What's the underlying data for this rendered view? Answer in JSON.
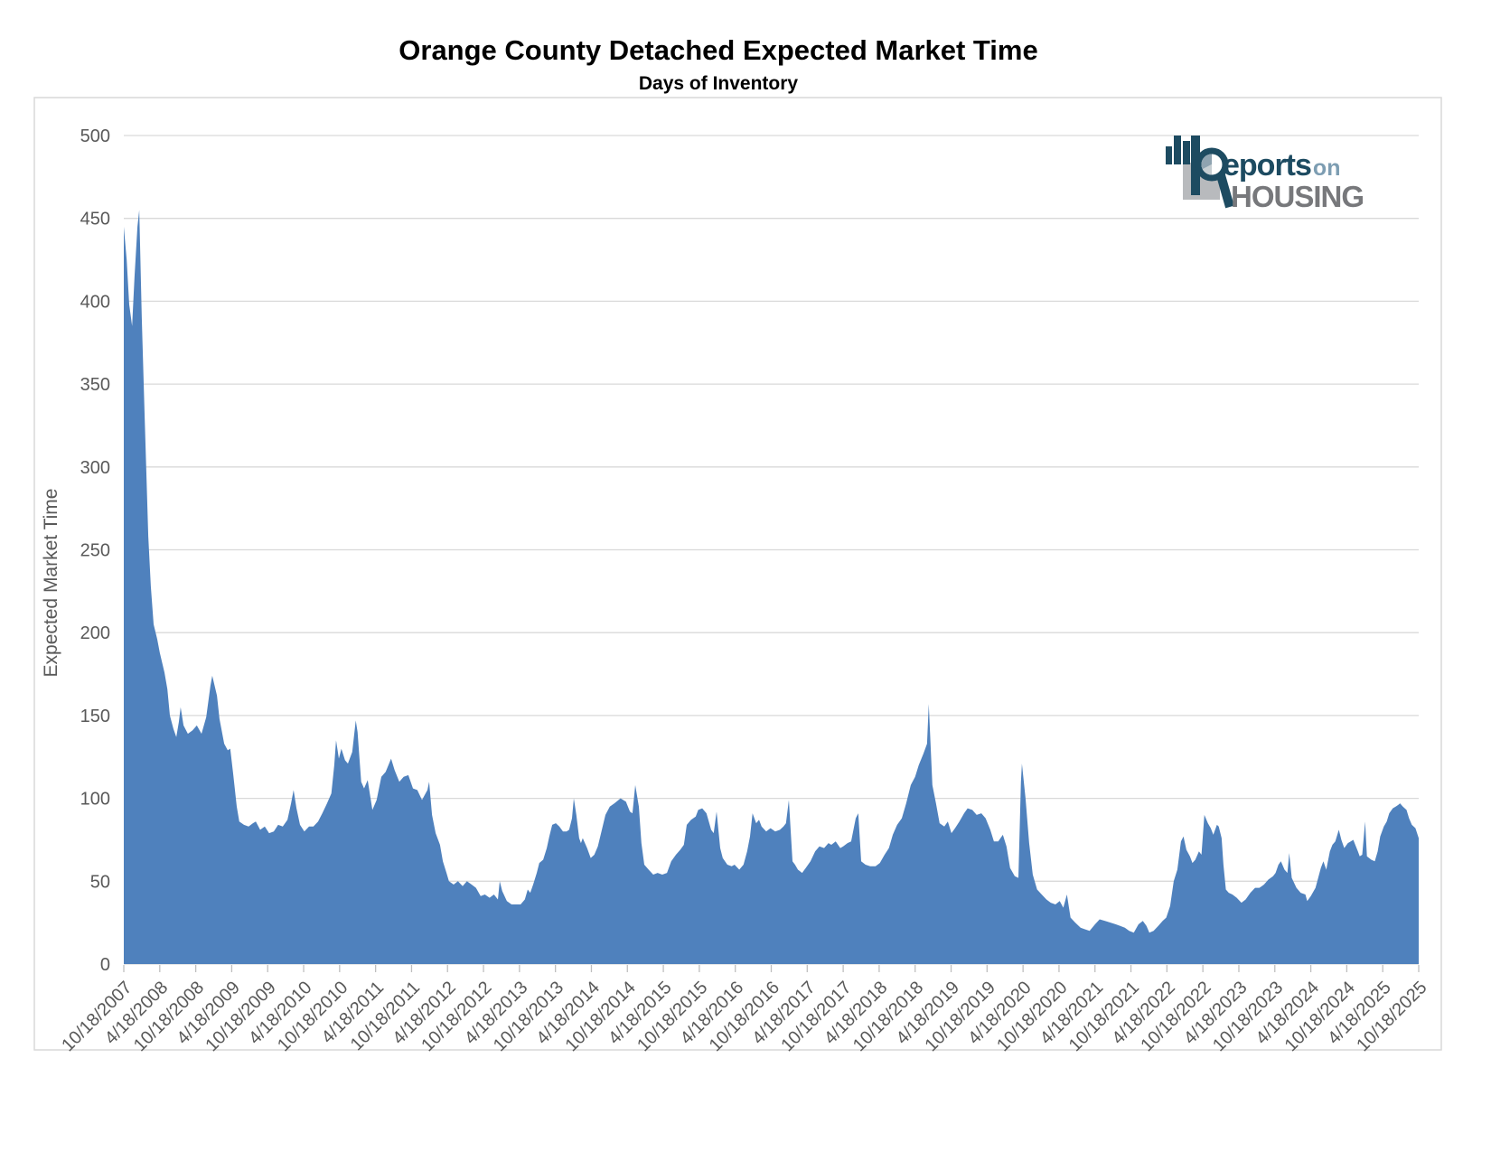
{
  "title": "Orange County Detached Expected Market Time",
  "subtitle": "Days of Inventory",
  "logo": {
    "reports": "eports",
    "on": "on",
    "housing": "HOUSING",
    "navy": "#1d4b61",
    "light_blue": "#7d9db2",
    "gray": "#77787b",
    "square_gray": "#b8babd"
  },
  "chart_data": {
    "type": "area",
    "title": "Orange County Detached Expected Market Time",
    "subtitle": "Days of Inventory",
    "legend": "none",
    "grid": "horizontal only, every 50",
    "y_axis": {
      "title": "Expected Market Time",
      "min": 0,
      "max": 500,
      "step": 50,
      "tick_labels": [
        "0",
        "50",
        "100",
        "150",
        "200",
        "250",
        "300",
        "350",
        "400",
        "450",
        "500"
      ]
    },
    "x_axis": {
      "note": "weekly series from 10/18/2007 to 10/18/2025; tick every 6 months; point x below is in tick-index units 0-36",
      "tick_labels": [
        "10/18/2007",
        "4/18/2008",
        "10/18/2008",
        "4/18/2009",
        "10/18/2009",
        "4/18/2010",
        "10/18/2010",
        "4/18/2011",
        "10/18/2011",
        "4/18/2012",
        "10/18/2012",
        "4/18/2013",
        "10/18/2013",
        "4/18/2014",
        "10/18/2014",
        "4/18/2015",
        "10/18/2015",
        "4/18/2016",
        "10/18/2016",
        "4/18/2017",
        "10/18/2017",
        "4/18/2018",
        "10/18/2018",
        "4/18/2019",
        "10/18/2019",
        "4/18/2020",
        "10/18/2020",
        "4/18/2021",
        "10/18/2021",
        "4/18/2022",
        "10/18/2022",
        "4/18/2023",
        "10/18/2023",
        "4/18/2024",
        "10/18/2024",
        "4/18/2025",
        "10/18/2025"
      ]
    },
    "style": {
      "area_fill": "#4f81bd",
      "gridline": "#d9d9d9",
      "frame": "#d9d9d9",
      "tick": "#bfbfbf",
      "axis_text": "#595959",
      "background": "#ffffff"
    },
    "points": [
      [
        0,
        445
      ],
      [
        0.08,
        425
      ],
      [
        0.15,
        398
      ],
      [
        0.23,
        385
      ],
      [
        0.3,
        415
      ],
      [
        0.38,
        445
      ],
      [
        0.43,
        455
      ],
      [
        0.5,
        390
      ],
      [
        0.58,
        330
      ],
      [
        0.68,
        258
      ],
      [
        0.75,
        228
      ],
      [
        0.83,
        205
      ],
      [
        0.93,
        196
      ],
      [
        1,
        188
      ],
      [
        1.13,
        176
      ],
      [
        1.21,
        166
      ],
      [
        1.28,
        150
      ],
      [
        1.38,
        142
      ],
      [
        1.46,
        137
      ],
      [
        1.53,
        146
      ],
      [
        1.58,
        155
      ],
      [
        1.66,
        144
      ],
      [
        1.78,
        139
      ],
      [
        1.91,
        141
      ],
      [
        2.03,
        144
      ],
      [
        2.16,
        139
      ],
      [
        2.29,
        149
      ],
      [
        2.41,
        168
      ],
      [
        2.46,
        174
      ],
      [
        2.59,
        162
      ],
      [
        2.66,
        148
      ],
      [
        2.79,
        133
      ],
      [
        2.89,
        129
      ],
      [
        2.96,
        130
      ],
      [
        3.04,
        115
      ],
      [
        3.14,
        95
      ],
      [
        3.21,
        86
      ],
      [
        3.34,
        84
      ],
      [
        3.47,
        83
      ],
      [
        3.59,
        85
      ],
      [
        3.67,
        86
      ],
      [
        3.79,
        81
      ],
      [
        3.92,
        83
      ],
      [
        4.04,
        79
      ],
      [
        4.17,
        80
      ],
      [
        4.29,
        84
      ],
      [
        4.42,
        83
      ],
      [
        4.55,
        87
      ],
      [
        4.65,
        97
      ],
      [
        4.72,
        105
      ],
      [
        4.8,
        94
      ],
      [
        4.9,
        84
      ],
      [
        5.02,
        80
      ],
      [
        5.15,
        83
      ],
      [
        5.27,
        83
      ],
      [
        5.4,
        86
      ],
      [
        5.52,
        91
      ],
      [
        5.65,
        97
      ],
      [
        5.77,
        103
      ],
      [
        5.85,
        120
      ],
      [
        5.9,
        135
      ],
      [
        5.98,
        124
      ],
      [
        6.05,
        130
      ],
      [
        6.15,
        123
      ],
      [
        6.23,
        121
      ],
      [
        6.35,
        128
      ],
      [
        6.45,
        147
      ],
      [
        6.5,
        140
      ],
      [
        6.6,
        110
      ],
      [
        6.68,
        106
      ],
      [
        6.78,
        111
      ],
      [
        6.91,
        93
      ],
      [
        7.03,
        99
      ],
      [
        7.16,
        113
      ],
      [
        7.28,
        116
      ],
      [
        7.43,
        124
      ],
      [
        7.53,
        117
      ],
      [
        7.66,
        110
      ],
      [
        7.78,
        113
      ],
      [
        7.91,
        114
      ],
      [
        8.04,
        106
      ],
      [
        8.16,
        105
      ],
      [
        8.29,
        99
      ],
      [
        8.44,
        105
      ],
      [
        8.49,
        110
      ],
      [
        8.57,
        90
      ],
      [
        8.67,
        79
      ],
      [
        8.79,
        72
      ],
      [
        8.87,
        62
      ],
      [
        8.97,
        55
      ],
      [
        9.04,
        50
      ],
      [
        9.17,
        48
      ],
      [
        9.29,
        50
      ],
      [
        9.42,
        47
      ],
      [
        9.54,
        50
      ],
      [
        9.67,
        48
      ],
      [
        9.79,
        46
      ],
      [
        9.92,
        41
      ],
      [
        10.04,
        42
      ],
      [
        10.17,
        40
      ],
      [
        10.29,
        42
      ],
      [
        10.4,
        39
      ],
      [
        10.45,
        50
      ],
      [
        10.52,
        44
      ],
      [
        10.65,
        38
      ],
      [
        10.78,
        36
      ],
      [
        10.9,
        36
      ],
      [
        11.03,
        36
      ],
      [
        11.15,
        39
      ],
      [
        11.23,
        45
      ],
      [
        11.3,
        43
      ],
      [
        11.38,
        48
      ],
      [
        11.48,
        55
      ],
      [
        11.55,
        61
      ],
      [
        11.66,
        63
      ],
      [
        11.76,
        70
      ],
      [
        11.83,
        77
      ],
      [
        11.91,
        84
      ],
      [
        12.01,
        85
      ],
      [
        12.11,
        83
      ],
      [
        12.21,
        80
      ],
      [
        12.31,
        80
      ],
      [
        12.38,
        81
      ],
      [
        12.46,
        88
      ],
      [
        12.51,
        100
      ],
      [
        12.58,
        90
      ],
      [
        12.66,
        76
      ],
      [
        12.71,
        73
      ],
      [
        12.76,
        76
      ],
      [
        12.88,
        70
      ],
      [
        12.98,
        64
      ],
      [
        13.08,
        66
      ],
      [
        13.18,
        71
      ],
      [
        13.28,
        80
      ],
      [
        13.39,
        90
      ],
      [
        13.51,
        95
      ],
      [
        13.64,
        97
      ],
      [
        13.81,
        100
      ],
      [
        13.96,
        98
      ],
      [
        14.07,
        92
      ],
      [
        14.14,
        91
      ],
      [
        14.22,
        108
      ],
      [
        14.32,
        95
      ],
      [
        14.39,
        73
      ],
      [
        14.47,
        60
      ],
      [
        14.59,
        57
      ],
      [
        14.72,
        54
      ],
      [
        14.84,
        55
      ],
      [
        14.97,
        54
      ],
      [
        15.1,
        55
      ],
      [
        15.22,
        62
      ],
      [
        15.35,
        66
      ],
      [
        15.47,
        69
      ],
      [
        15.57,
        72
      ],
      [
        15.65,
        84
      ],
      [
        15.77,
        87
      ],
      [
        15.9,
        89
      ],
      [
        15.97,
        93
      ],
      [
        16.08,
        94
      ],
      [
        16.2,
        91
      ],
      [
        16.33,
        81
      ],
      [
        16.4,
        79
      ],
      [
        16.48,
        92
      ],
      [
        16.58,
        70
      ],
      [
        16.65,
        64
      ],
      [
        16.78,
        60
      ],
      [
        16.9,
        59
      ],
      [
        16.98,
        60
      ],
      [
        17.11,
        57
      ],
      [
        17.23,
        60
      ],
      [
        17.33,
        68
      ],
      [
        17.41,
        77
      ],
      [
        17.48,
        91
      ],
      [
        17.58,
        85
      ],
      [
        17.66,
        87
      ],
      [
        17.73,
        83
      ],
      [
        17.86,
        80
      ],
      [
        17.98,
        82
      ],
      [
        18.11,
        80
      ],
      [
        18.24,
        81
      ],
      [
        18.34,
        83
      ],
      [
        18.41,
        85
      ],
      [
        18.49,
        99
      ],
      [
        18.59,
        62
      ],
      [
        18.66,
        60
      ],
      [
        18.74,
        57
      ],
      [
        18.86,
        55
      ],
      [
        18.96,
        58
      ],
      [
        19.09,
        62
      ],
      [
        19.22,
        68
      ],
      [
        19.34,
        71
      ],
      [
        19.47,
        70
      ],
      [
        19.59,
        73
      ],
      [
        19.67,
        72
      ],
      [
        19.79,
        74
      ],
      [
        19.92,
        70
      ],
      [
        20,
        71
      ],
      [
        20.12,
        73
      ],
      [
        20.22,
        74
      ],
      [
        20.35,
        88
      ],
      [
        20.42,
        91
      ],
      [
        20.5,
        62
      ],
      [
        20.62,
        60
      ],
      [
        20.75,
        59
      ],
      [
        20.9,
        59
      ],
      [
        21.02,
        61
      ],
      [
        21.15,
        66
      ],
      [
        21.27,
        70
      ],
      [
        21.38,
        78
      ],
      [
        21.5,
        84
      ],
      [
        21.63,
        88
      ],
      [
        21.75,
        97
      ],
      [
        21.88,
        108
      ],
      [
        22,
        113
      ],
      [
        22.1,
        120
      ],
      [
        22.23,
        127
      ],
      [
        22.33,
        133
      ],
      [
        22.38,
        157
      ],
      [
        22.48,
        108
      ],
      [
        22.58,
        97
      ],
      [
        22.68,
        85
      ],
      [
        22.81,
        83
      ],
      [
        22.91,
        86
      ],
      [
        23.01,
        79
      ],
      [
        23.11,
        82
      ],
      [
        23.23,
        86
      ],
      [
        23.36,
        91
      ],
      [
        23.46,
        94
      ],
      [
        23.59,
        93
      ],
      [
        23.71,
        90
      ],
      [
        23.84,
        91
      ],
      [
        23.96,
        88
      ],
      [
        24.09,
        81
      ],
      [
        24.19,
        74
      ],
      [
        24.31,
        74
      ],
      [
        24.44,
        78
      ],
      [
        24.54,
        71
      ],
      [
        24.64,
        58
      ],
      [
        24.77,
        53
      ],
      [
        24.87,
        52
      ],
      [
        24.94,
        110
      ],
      [
        24.97,
        121
      ],
      [
        25.07,
        100
      ],
      [
        25.17,
        73
      ],
      [
        25.27,
        54
      ],
      [
        25.39,
        45
      ],
      [
        25.52,
        42
      ],
      [
        25.65,
        39
      ],
      [
        25.77,
        37
      ],
      [
        25.9,
        36
      ],
      [
        26.02,
        38
      ],
      [
        26.12,
        34
      ],
      [
        26.22,
        42
      ],
      [
        26.32,
        28
      ],
      [
        26.45,
        25
      ],
      [
        26.6,
        22
      ],
      [
        26.72,
        21
      ],
      [
        26.85,
        20
      ],
      [
        27,
        24
      ],
      [
        27.13,
        27
      ],
      [
        27.28,
        26
      ],
      [
        27.43,
        25
      ],
      [
        27.58,
        24
      ],
      [
        27.7,
        23
      ],
      [
        27.83,
        22
      ],
      [
        27.95,
        20
      ],
      [
        28.08,
        19
      ],
      [
        28.21,
        24
      ],
      [
        28.33,
        26
      ],
      [
        28.43,
        23
      ],
      [
        28.51,
        19
      ],
      [
        28.63,
        20
      ],
      [
        28.76,
        23
      ],
      [
        28.88,
        26
      ],
      [
        28.98,
        28
      ],
      [
        29.09,
        35
      ],
      [
        29.19,
        50
      ],
      [
        29.29,
        57
      ],
      [
        29.39,
        74
      ],
      [
        29.46,
        77
      ],
      [
        29.54,
        69
      ],
      [
        29.64,
        65
      ],
      [
        29.71,
        61
      ],
      [
        29.79,
        63
      ],
      [
        29.89,
        68
      ],
      [
        29.96,
        66
      ],
      [
        30.04,
        90
      ],
      [
        30.14,
        85
      ],
      [
        30.22,
        82
      ],
      [
        30.29,
        78
      ],
      [
        30.39,
        84
      ],
      [
        30.44,
        83
      ],
      [
        30.52,
        76
      ],
      [
        30.57,
        60
      ],
      [
        30.64,
        45
      ],
      [
        30.72,
        43
      ],
      [
        30.82,
        42
      ],
      [
        30.94,
        40
      ],
      [
        31.07,
        37
      ],
      [
        31.19,
        39
      ],
      [
        31.32,
        43
      ],
      [
        31.45,
        46
      ],
      [
        31.57,
        46
      ],
      [
        31.7,
        48
      ],
      [
        31.82,
        51
      ],
      [
        31.95,
        53
      ],
      [
        32.02,
        55
      ],
      [
        32.1,
        60
      ],
      [
        32.17,
        62
      ],
      [
        32.27,
        57
      ],
      [
        32.35,
        55
      ],
      [
        32.4,
        67
      ],
      [
        32.47,
        52
      ],
      [
        32.6,
        46
      ],
      [
        32.72,
        43
      ],
      [
        32.85,
        42
      ],
      [
        32.9,
        38
      ],
      [
        33,
        41
      ],
      [
        33.13,
        46
      ],
      [
        33.28,
        58
      ],
      [
        33.35,
        62
      ],
      [
        33.43,
        57
      ],
      [
        33.53,
        68
      ],
      [
        33.6,
        72
      ],
      [
        33.68,
        74
      ],
      [
        33.78,
        81
      ],
      [
        33.85,
        75
      ],
      [
        33.93,
        70
      ],
      [
        34.03,
        73
      ],
      [
        34.11,
        74
      ],
      [
        34.18,
        75
      ],
      [
        34.31,
        68
      ],
      [
        34.36,
        65
      ],
      [
        34.43,
        66
      ],
      [
        34.51,
        86
      ],
      [
        34.56,
        65
      ],
      [
        34.68,
        63
      ],
      [
        34.78,
        62
      ],
      [
        34.86,
        68
      ],
      [
        34.93,
        77
      ],
      [
        35.03,
        83
      ],
      [
        35.11,
        86
      ],
      [
        35.18,
        91
      ],
      [
        35.28,
        94
      ],
      [
        35.36,
        95
      ],
      [
        35.43,
        96
      ],
      [
        35.48,
        97
      ],
      [
        35.56,
        95
      ],
      [
        35.66,
        93
      ],
      [
        35.73,
        88
      ],
      [
        35.81,
        84
      ],
      [
        35.91,
        82
      ],
      [
        36,
        76
      ]
    ]
  }
}
